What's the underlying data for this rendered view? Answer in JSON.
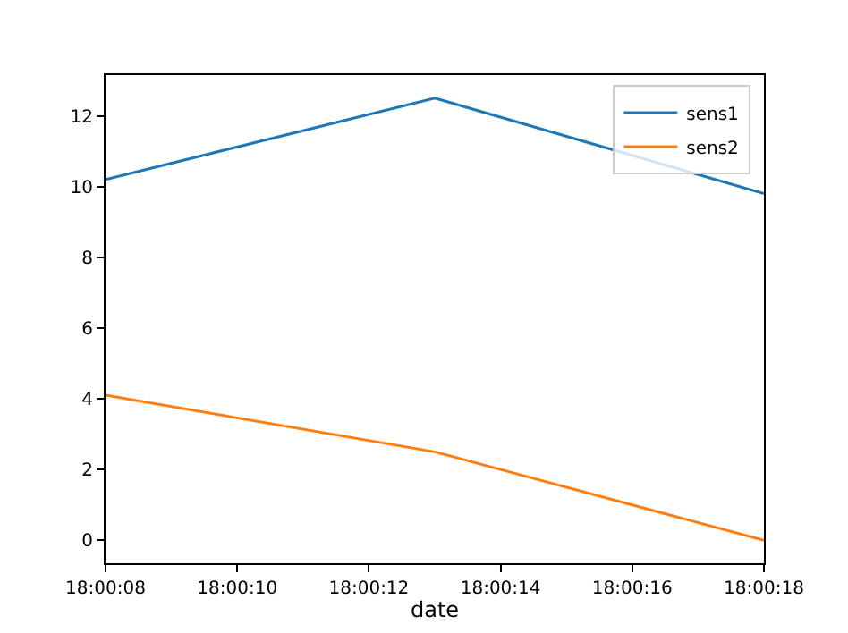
{
  "chart_data": {
    "type": "line",
    "xlabel": "date",
    "x": [
      18.0022222,
      18.0036111,
      18.005
    ],
    "series": [
      {
        "name": "sens1",
        "color": "#1f77b4",
        "values": [
          10.2,
          12.5,
          9.8
        ]
      },
      {
        "name": "sens2",
        "color": "#ff7f0e",
        "values": [
          4.1,
          2.5,
          0.0
        ]
      }
    ],
    "xlim": [
      18.0022222,
      18.005
    ],
    "xticks": [
      {
        "value": 18.0022222,
        "label": "18:00:08"
      },
      {
        "value": 18.0027778,
        "label": "18:00:10"
      },
      {
        "value": 18.0033333,
        "label": "18:00:12"
      },
      {
        "value": 18.0038889,
        "label": "18:00:14"
      },
      {
        "value": 18.0044444,
        "label": "18:00:16"
      },
      {
        "value": 18.005,
        "label": "18:00:18"
      }
    ],
    "ylim": [
      -0.65,
      13.15
    ],
    "yticks": [
      0,
      2,
      4,
      6,
      8,
      10,
      12
    ],
    "grid": false,
    "legend": "top right",
    "marker": "none",
    "line_style": "solid"
  }
}
